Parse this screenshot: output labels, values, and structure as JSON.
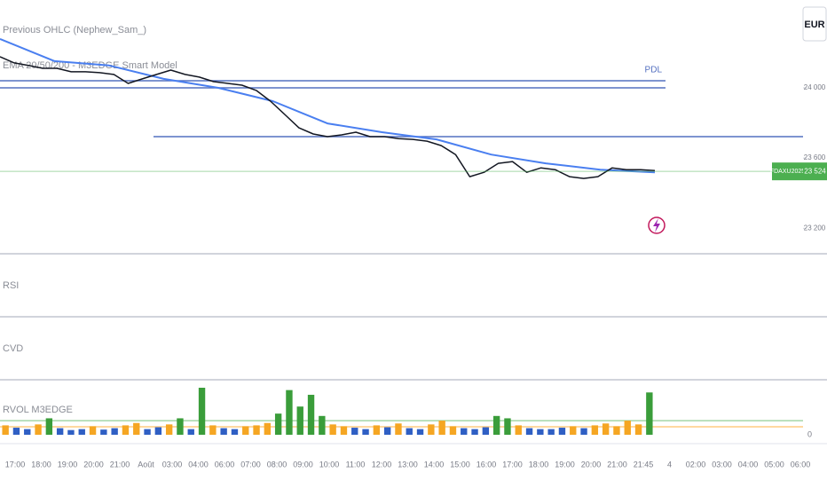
{
  "legend": {
    "indicator_1": "Previous OHLC (Nephew_Sam_)",
    "indicator_2": "EMA 20/50/200 - M3EDGE Smart Model"
  },
  "currency": "EUR",
  "price_pane": {
    "ylim": [
      23060,
      24500
    ],
    "yticks": [
      {
        "value": 24000,
        "label": "24 000"
      },
      {
        "value": 23600,
        "label": "23 600"
      },
      {
        "value": 23200,
        "label": "23 200"
      }
    ],
    "price": {
      "name": "FDAXU2025",
      "value": 23524,
      "label": "23 524",
      "color": "#4caf50"
    },
    "close": {
      "color": "#131722",
      "values": [
        24177,
        24142,
        24127,
        24111,
        24111,
        24091,
        24091,
        24086,
        24076,
        24025,
        24051,
        24076,
        24101,
        24076,
        24061,
        24035,
        24025,
        24015,
        23985,
        23924,
        23848,
        23772,
        23737,
        23722,
        23732,
        23747,
        23722,
        23722,
        23711,
        23706,
        23696,
        23671,
        23620,
        23494,
        23519,
        23570,
        23580,
        23519,
        23544,
        23534,
        23494,
        23484,
        23494,
        23544,
        23534,
        23534,
        23529
      ]
    },
    "ema": {
      "color": "#4a7ff0",
      "values": [
        24278,
        24152,
        24127,
        24051,
        24000,
        23924,
        23797,
        23747,
        23706,
        23620,
        23570,
        23534,
        23519
      ]
    },
    "levels": [
      {
        "name": "PDL",
        "value": 24040,
        "color": "#5470c0"
      },
      {
        "value": 24000,
        "color": "#5470c0"
      },
      {
        "value": 23722,
        "color": "#5470c0"
      }
    ]
  },
  "panes": [
    "RSI",
    "CVD"
  ],
  "volume_pane": {
    "title": "RVOL M3EDGE",
    "ylim": [
      0,
      100
    ],
    "yticks": [
      0
    ],
    "thresholds": [
      {
        "value": 30,
        "color": "#a5d6a7"
      },
      {
        "value": 17,
        "color": "#ffcc80"
      }
    ],
    "colors": {
      "low": "#2f5fc4",
      "mid": "#f5a623",
      "high": "#3a9d3a"
    },
    "values": [
      20,
      15,
      12,
      22,
      35,
      14,
      10,
      12,
      18,
      11,
      14,
      20,
      25,
      12,
      16,
      22,
      35,
      12,
      100,
      20,
      14,
      12,
      18,
      20,
      25,
      45,
      95,
      60,
      85,
      40,
      22,
      18,
      15,
      12,
      20,
      16,
      24,
      14,
      12,
      22,
      30,
      18,
      14,
      12,
      16,
      40,
      35,
      20,
      14,
      12,
      12,
      15,
      18,
      14,
      20,
      24,
      18,
      30,
      22,
      90
    ]
  },
  "time_axis": [
    "17:00",
    "18:00",
    "19:00",
    "20:00",
    "21:00",
    "Août",
    "03:00",
    "04:00",
    "06:00",
    "07:00",
    "08:00",
    "09:00",
    "10:00",
    "11:00",
    "12:00",
    "13:00",
    "14:00",
    "15:00",
    "16:00",
    "17:00",
    "18:00",
    "19:00",
    "20:00",
    "21:00",
    "21:45",
    "4",
    "02:00",
    "03:00",
    "04:00",
    "05:00",
    "06:00"
  ]
}
